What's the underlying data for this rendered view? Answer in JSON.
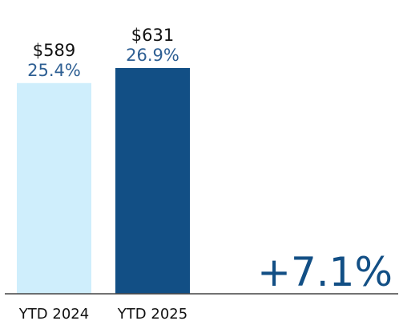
{
  "chart_data": {
    "type": "bar",
    "categories": [
      "YTD 2024",
      "YTD 2025"
    ],
    "values": [
      589,
      631
    ],
    "value_labels": [
      "$589",
      "$631"
    ],
    "percent_labels": [
      "25.4%",
      "26.9%"
    ],
    "change_label": "+7.1%",
    "ylim": [
      0,
      631
    ],
    "grid": false,
    "legend": "none",
    "colors": {
      "bars": [
        "#cfeefc",
        "#124f85"
      ],
      "value_text": "#111111",
      "percent_text": "#2e5f93",
      "change_text": "#124f85",
      "tick_text": "#111111",
      "axis": "#444444"
    }
  }
}
